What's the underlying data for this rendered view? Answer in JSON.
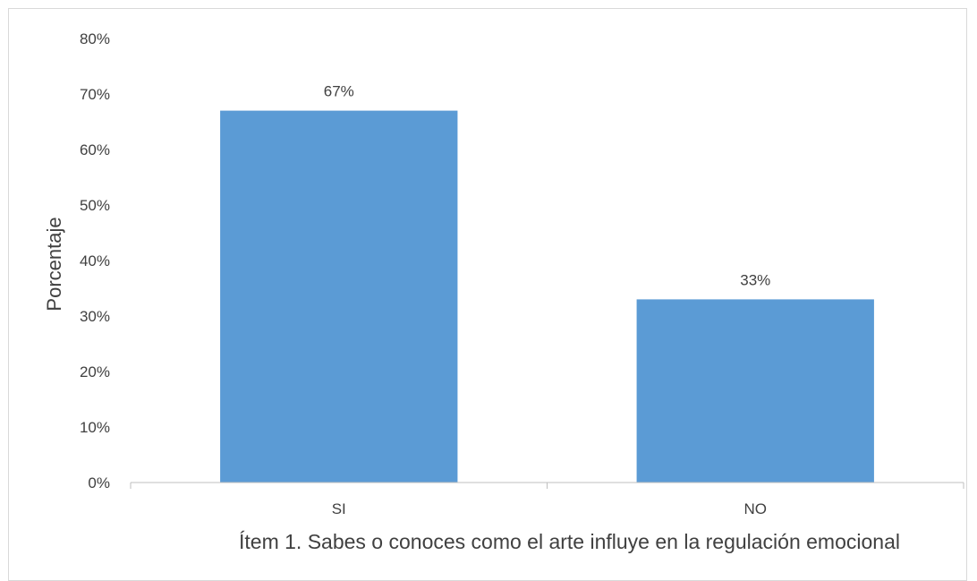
{
  "chart_data": {
    "type": "bar",
    "categories": [
      "SI",
      "NO"
    ],
    "values": [
      67,
      33
    ],
    "value_labels": [
      "67%",
      "33%"
    ],
    "xlabel": "Ítem 1. Sabes o conoces como el arte influye en la regulación emocional",
    "ylabel": "Porcentaje",
    "ylim": [
      0,
      80
    ],
    "yticks": [
      0,
      10,
      20,
      30,
      40,
      50,
      60,
      70,
      80
    ],
    "ytick_labels": [
      "0%",
      "10%",
      "20%",
      "30%",
      "40%",
      "50%",
      "60%",
      "70%",
      "80%"
    ],
    "grid": false,
    "legend": "none",
    "bar_color": "#5b9bd5",
    "axis_color": "#bfbfbf",
    "text_color": "#404040"
  }
}
